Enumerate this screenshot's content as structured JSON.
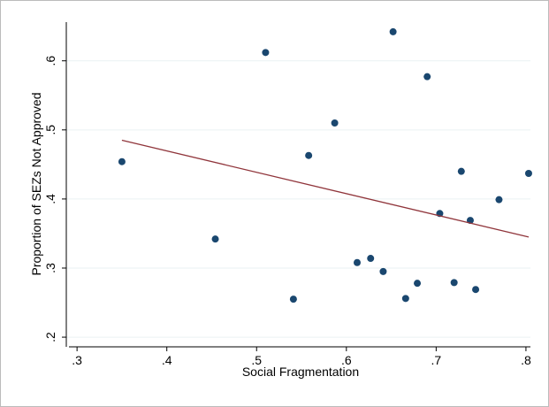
{
  "chart_data": {
    "type": "scatter",
    "x_label": "Social Fragmentation",
    "y_label": "Proportion of SEZs Not Approved",
    "xlim": [
      0.291,
      0.805
    ],
    "ylim": [
      0.186,
      0.656
    ],
    "xticks": [
      {
        "value": 0.3,
        "label": ".3"
      },
      {
        "value": 0.4,
        "label": ".4"
      },
      {
        "value": 0.5,
        "label": ".5"
      },
      {
        "value": 0.6,
        "label": ".6"
      },
      {
        "value": 0.7,
        "label": ".7"
      },
      {
        "value": 0.8,
        "label": ".8"
      }
    ],
    "yticks": [
      {
        "value": 0.2,
        "label": ".2"
      },
      {
        "value": 0.3,
        "label": ".3"
      },
      {
        "value": 0.4,
        "label": ".4"
      },
      {
        "value": 0.5,
        "label": ".5"
      },
      {
        "value": 0.6,
        "label": ".6"
      }
    ],
    "grid": true,
    "series": [
      {
        "color": "#1a476f",
        "x": [
          0.35,
          0.454,
          0.51,
          0.541,
          0.558,
          0.587,
          0.612,
          0.627,
          0.641,
          0.652,
          0.666,
          0.679,
          0.69,
          0.704,
          0.72,
          0.728,
          0.738,
          0.744,
          0.77,
          0.803
        ],
        "values": [
          0.454,
          0.342,
          0.612,
          0.255,
          0.463,
          0.51,
          0.308,
          0.314,
          0.295,
          0.642,
          0.256,
          0.278,
          0.577,
          0.379,
          0.279,
          0.44,
          0.369,
          0.269,
          0.399,
          0.437
        ]
      },
      {
        "type": "line",
        "color": "#90353b",
        "x": [
          0.35,
          0.803
        ],
        "values": [
          0.485,
          0.345
        ]
      }
    ]
  }
}
